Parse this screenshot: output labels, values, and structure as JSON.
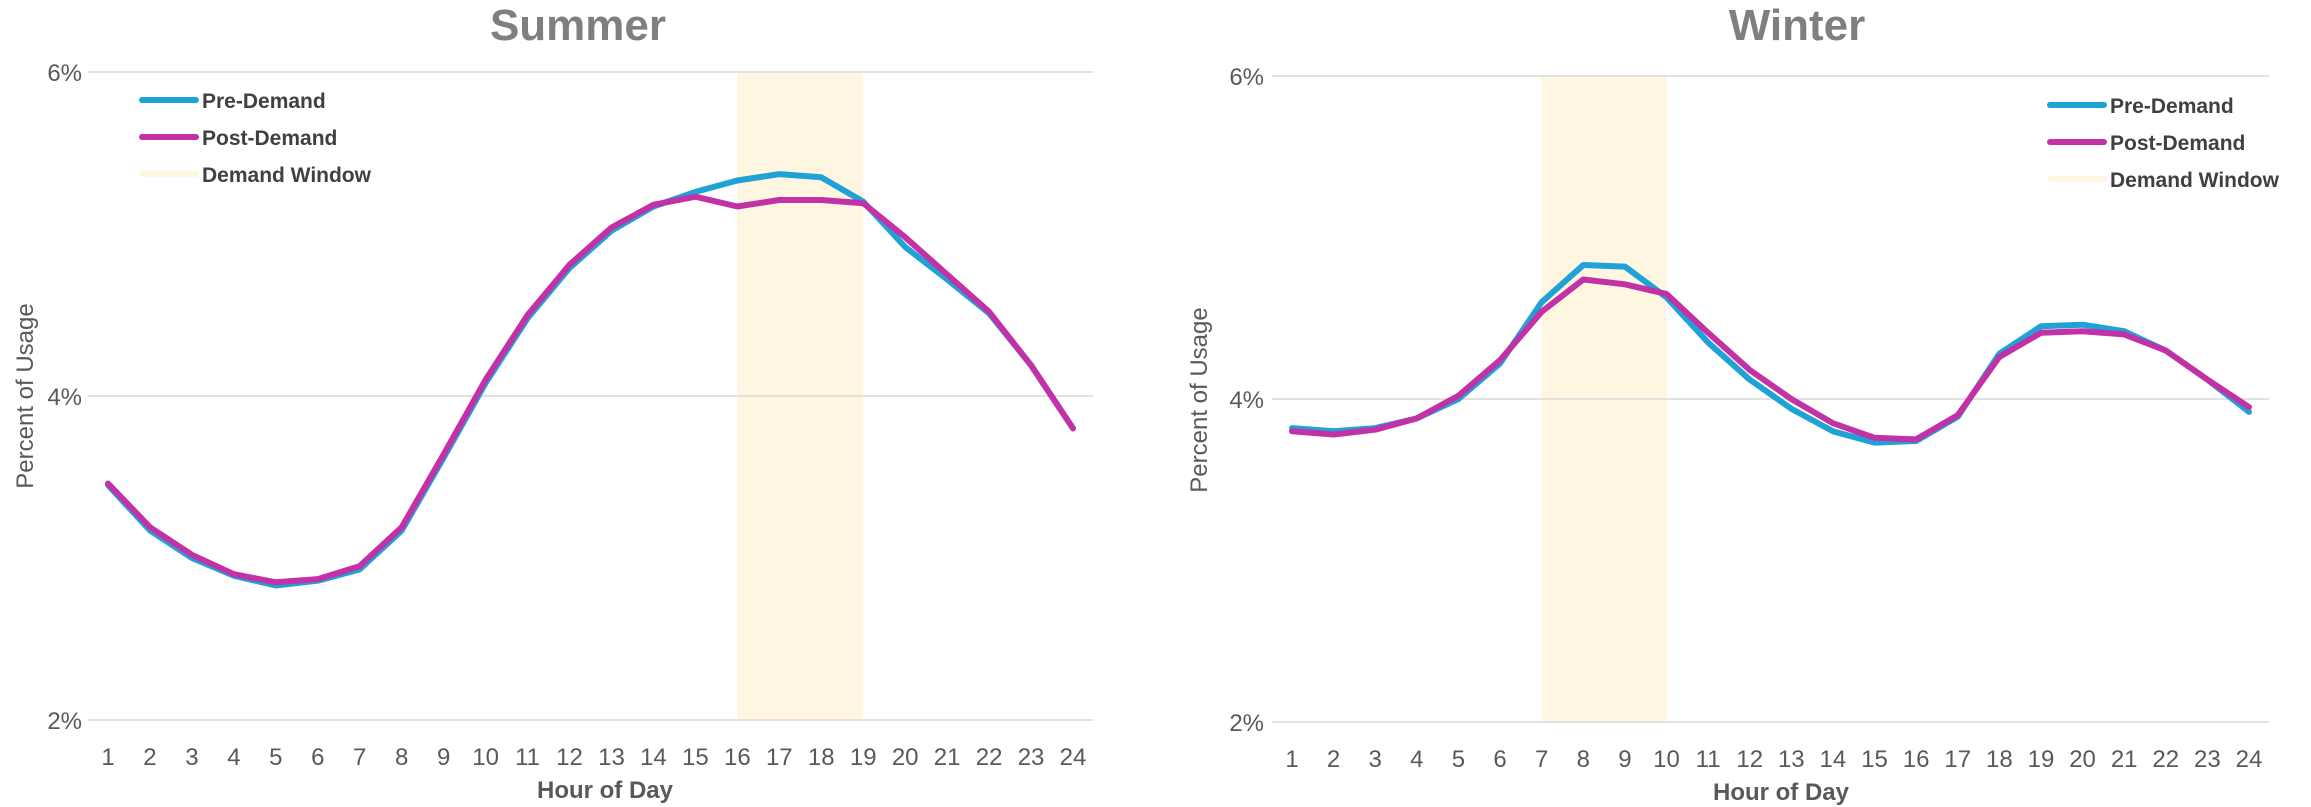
{
  "colors": {
    "pre_demand": "#1fa2d6",
    "post_demand": "#c232a6",
    "demand_window": "#fef6e1"
  },
  "chart_data": [
    {
      "type": "line",
      "title": "Summer",
      "xlabel": "Hour of Day",
      "ylabel": "Percent of Usage",
      "ylim": [
        2,
        6
      ],
      "yticks": [
        "2%",
        "4%",
        "6%"
      ],
      "categories": [
        "1",
        "2",
        "3",
        "4",
        "5",
        "6",
        "7",
        "8",
        "9",
        "10",
        "11",
        "12",
        "13",
        "14",
        "15",
        "16",
        "17",
        "18",
        "19",
        "20",
        "21",
        "22",
        "23",
        "24"
      ],
      "grid": true,
      "legend_position": "top-left",
      "demand_window": {
        "label": "Demand Window",
        "start": 16,
        "end": 19
      },
      "series": [
        {
          "name": "Pre-Demand",
          "color": "#1fa2d6",
          "values": [
            3.45,
            3.17,
            3.0,
            2.89,
            2.83,
            2.86,
            2.93,
            3.17,
            3.62,
            4.08,
            4.48,
            4.79,
            5.02,
            5.17,
            5.26,
            5.33,
            5.37,
            5.35,
            5.2,
            4.92,
            4.72,
            4.51,
            4.19,
            3.8
          ]
        },
        {
          "name": "Post-Demand",
          "color": "#c232a6",
          "values": [
            3.46,
            3.19,
            3.02,
            2.9,
            2.85,
            2.87,
            2.95,
            3.19,
            3.64,
            4.1,
            4.5,
            4.81,
            5.04,
            5.18,
            5.23,
            5.17,
            5.21,
            5.21,
            5.19,
            4.98,
            4.75,
            4.52,
            4.19,
            3.8
          ]
        }
      ]
    },
    {
      "type": "line",
      "title": "Winter",
      "xlabel": "Hour of Day",
      "ylabel": "Percent of Usage",
      "ylim": [
        2,
        6
      ],
      "yticks": [
        "2%",
        "4%",
        "6%"
      ],
      "categories": [
        "1",
        "2",
        "3",
        "4",
        "5",
        "6",
        "7",
        "8",
        "9",
        "10",
        "11",
        "12",
        "13",
        "14",
        "15",
        "16",
        "17",
        "18",
        "19",
        "20",
        "21",
        "22",
        "23",
        "24"
      ],
      "grid": true,
      "legend_position": "top-right",
      "demand_window": {
        "label": "Demand Window",
        "start": 7,
        "end": 10
      },
      "series": [
        {
          "name": "Pre-Demand",
          "color": "#1fa2d6",
          "values": [
            3.82,
            3.8,
            3.82,
            3.88,
            4.0,
            4.22,
            4.6,
            4.83,
            4.82,
            4.63,
            4.35,
            4.12,
            3.94,
            3.8,
            3.73,
            3.74,
            3.89,
            4.28,
            4.45,
            4.46,
            4.42,
            4.3,
            4.12,
            3.92
          ]
        },
        {
          "name": "Post-Demand",
          "color": "#c232a6",
          "values": [
            3.8,
            3.78,
            3.81,
            3.88,
            4.02,
            4.24,
            4.54,
            4.74,
            4.71,
            4.65,
            4.41,
            4.18,
            4.0,
            3.85,
            3.76,
            3.75,
            3.9,
            4.26,
            4.41,
            4.42,
            4.4,
            4.3,
            4.12,
            3.95
          ]
        }
      ]
    }
  ]
}
